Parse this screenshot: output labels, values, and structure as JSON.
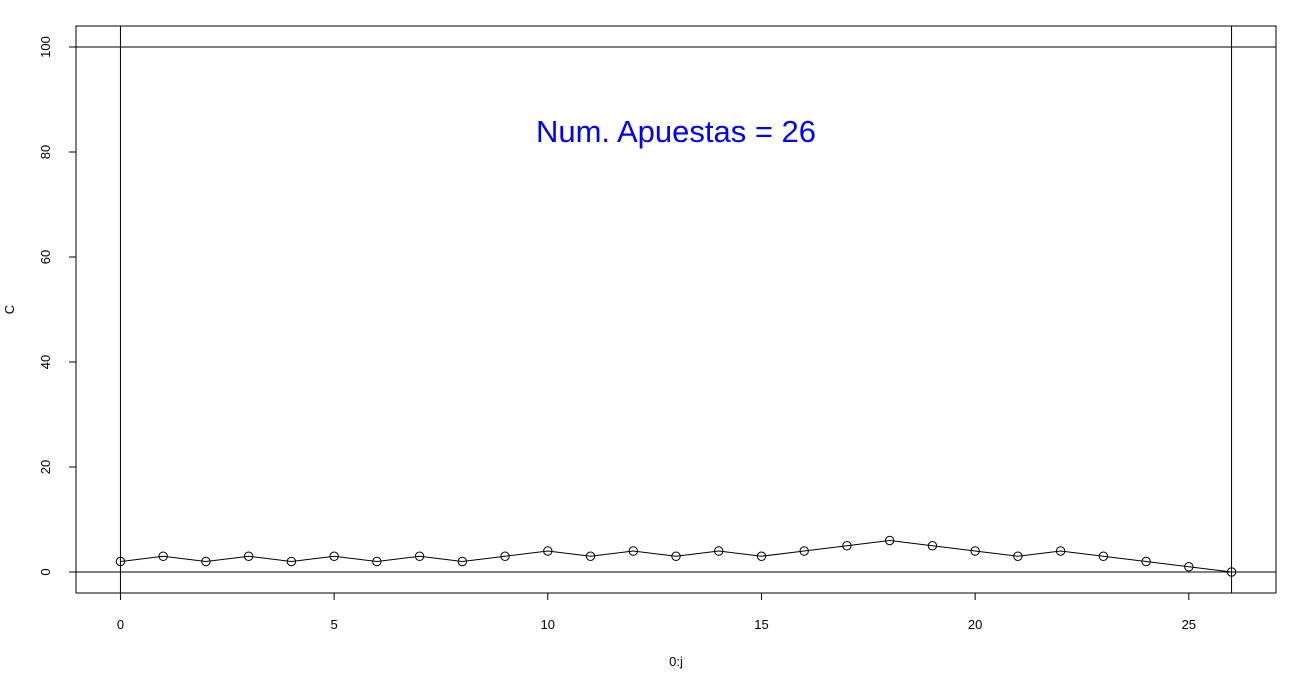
{
  "chart_data": {
    "type": "line",
    "title": "",
    "xlabel": "0:j",
    "ylabel": "C",
    "xlim": [
      -1.04,
      27.04
    ],
    "ylim": [
      -4,
      104
    ],
    "x_ticks": [
      0,
      5,
      10,
      15,
      20,
      25
    ],
    "y_ticks": [
      0,
      20,
      40,
      60,
      80,
      100
    ],
    "x_tick_labels": [
      "0",
      "5",
      "10",
      "15",
      "20",
      "25"
    ],
    "y_tick_labels": [
      "0",
      "20",
      "40",
      "60",
      "80",
      "100"
    ],
    "grid": false,
    "markers": "open-circle",
    "reference_lines": {
      "horizontal": [
        0,
        100
      ],
      "vertical": [
        0,
        26
      ]
    },
    "annotation": {
      "text": "Num. Apuestas = 26",
      "x": 13,
      "y": 84,
      "color": "#0000ff"
    },
    "series": [
      {
        "x": [
          0,
          1,
          2,
          3,
          4,
          5,
          6,
          7,
          8,
          9,
          10,
          11,
          12,
          13,
          14,
          15,
          16,
          17,
          18,
          19,
          20,
          21,
          22,
          23,
          24,
          25,
          26
        ],
        "values": [
          2,
          3,
          2,
          3,
          2,
          3,
          2,
          3,
          2,
          3,
          4,
          3,
          4,
          3,
          4,
          3,
          4,
          5,
          6,
          5,
          4,
          3,
          4,
          3,
          2,
          1,
          0
        ],
        "color": "#000000"
      }
    ]
  }
}
